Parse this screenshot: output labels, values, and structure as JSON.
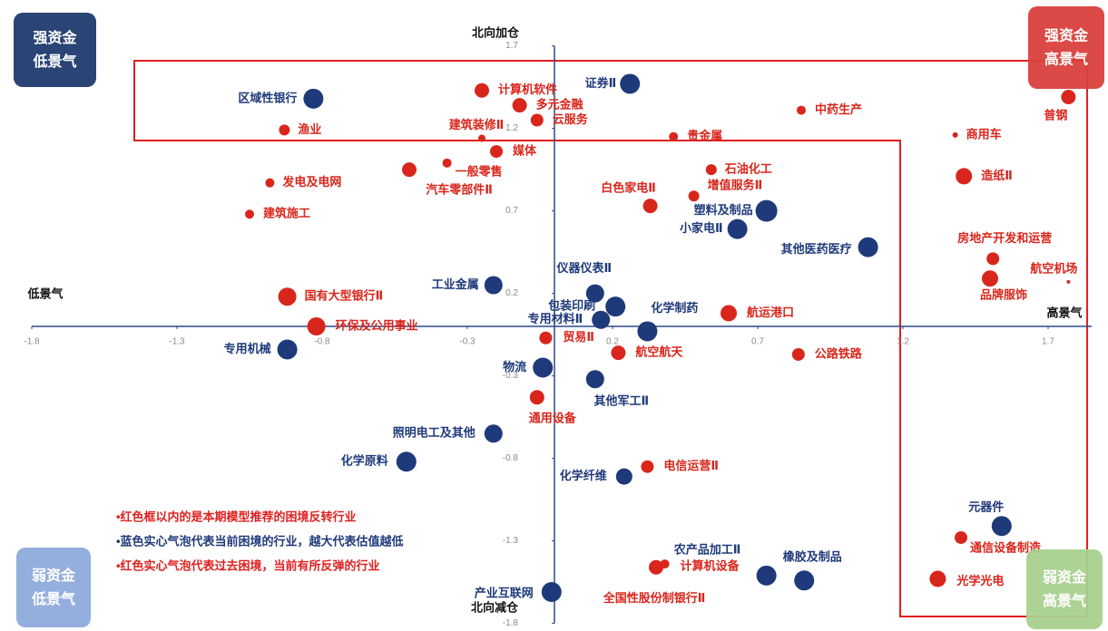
{
  "chart_data": {
    "type": "bubble",
    "xlim": [
      -1.8,
      1.85
    ],
    "ylim": [
      -1.8,
      1.7
    ],
    "xticks": [
      -1.8,
      -1.3,
      -0.8,
      -0.3,
      0.2,
      0.7,
      1.2,
      1.7
    ],
    "yticks": [
      1.7,
      1.2,
      0.7,
      0.2,
      -0.3,
      -0.8,
      -1.3,
      -1.8
    ],
    "x_label_left": "低景气",
    "x_label_right": "高景气",
    "y_label_top": "北向加仓",
    "y_label_bottom": "北向减仓",
    "quadrants": [
      {
        "line1": "强资金",
        "line2": "低景气",
        "color": "#1f3a6e"
      },
      {
        "line1": "强资金",
        "line2": "高景气",
        "color": "#d9403c"
      },
      {
        "line1": "弱资金",
        "line2": "低景气",
        "color": "#8eaadb"
      },
      {
        "line1": "弱资金",
        "line2": "高景气",
        "color": "#a9d18e"
      }
    ],
    "notes": [
      {
        "text": "•红色框以内的是本期模型推荐的困境反转行业",
        "color": "#e02020"
      },
      {
        "text": "•蓝色实心气泡代表当前困境的行业，越大代表估值越低",
        "color": "#1f3a7a"
      },
      {
        "text": "•红色实心气泡代表过去困境，当前有所反弹的行业",
        "color": "#e02020"
      }
    ],
    "points": [
      {
        "label": "区域性银行",
        "x": -0.83,
        "y": 1.38,
        "size": 11,
        "color": "#1f3a7a"
      },
      {
        "label": "证券Ⅱ",
        "x": 0.26,
        "y": 1.47,
        "size": 11,
        "color": "#1f3a7a"
      },
      {
        "label": "塑料及制品",
        "x": 0.73,
        "y": 0.7,
        "size": 12,
        "color": "#1f3a7a"
      },
      {
        "label": "小家电Ⅱ",
        "x": 0.63,
        "y": 0.59,
        "size": 11,
        "color": "#1f3a7a"
      },
      {
        "label": "其他医药医疗",
        "x": 1.08,
        "y": 0.48,
        "size": 11,
        "color": "#1f3a7a"
      },
      {
        "label": "工业金属",
        "x": -0.21,
        "y": 0.25,
        "size": 10,
        "color": "#1f3a7a"
      },
      {
        "label": "仪器仪表Ⅱ",
        "x": 0.14,
        "y": 0.2,
        "size": 10,
        "color": "#1f3a7a"
      },
      {
        "label": "包装印刷",
        "x": 0.21,
        "y": 0.12,
        "size": 11,
        "color": "#1f3a7a"
      },
      {
        "label": "专用材料Ⅱ",
        "x": 0.16,
        "y": 0.04,
        "size": 10,
        "color": "#1f3a7a"
      },
      {
        "label": "化学制药",
        "x": 0.32,
        "y": -0.03,
        "size": 11,
        "color": "#1f3a7a"
      },
      {
        "label": "专用机械",
        "x": -0.92,
        "y": -0.14,
        "size": 11,
        "color": "#1f3a7a"
      },
      {
        "label": "物流",
        "x": -0.04,
        "y": -0.25,
        "size": 11,
        "color": "#1f3a7a"
      },
      {
        "label": "其他军工Ⅱ",
        "x": 0.14,
        "y": -0.32,
        "size": 10,
        "color": "#1f3a7a"
      },
      {
        "label": "照明电工及其他",
        "x": -0.21,
        "y": -0.65,
        "size": 10,
        "color": "#1f3a7a"
      },
      {
        "label": "化学原料",
        "x": -0.51,
        "y": -0.82,
        "size": 11,
        "color": "#1f3a7a"
      },
      {
        "label": "化学纤维",
        "x": 0.24,
        "y": -0.91,
        "size": 9,
        "color": "#1f3a7a"
      },
      {
        "label": "元器件",
        "x": 1.54,
        "y": -1.21,
        "size": 11,
        "color": "#1f3a7a"
      },
      {
        "label": "橡胶及制品",
        "x": 0.86,
        "y": -1.54,
        "size": 11,
        "color": "#1f3a7a"
      },
      {
        "label": "农产品加工Ⅱ",
        "x": 0.73,
        "y": -1.51,
        "size": 11,
        "color": "#1f3a7a"
      },
      {
        "label": "产业互联网",
        "x": -0.01,
        "y": -1.61,
        "size": 11,
        "color": "#1f3a7a"
      },
      {
        "label": "计算机软件",
        "x": -0.25,
        "y": 1.43,
        "size": 8,
        "color": "#d9261c"
      },
      {
        "label": "多元金融",
        "x": -0.12,
        "y": 1.34,
        "size": 8,
        "color": "#d9261c"
      },
      {
        "label": "云服务",
        "x": -0.06,
        "y": 1.25,
        "size": 7,
        "color": "#d9261c"
      },
      {
        "label": "建筑装修Ⅱ",
        "x": -0.25,
        "y": 1.14,
        "size": 4,
        "color": "#d9261c"
      },
      {
        "label": "媒体",
        "x": -0.2,
        "y": 1.06,
        "size": 7,
        "color": "#d9261c"
      },
      {
        "label": "渔业",
        "x": -0.93,
        "y": 1.19,
        "size": 6,
        "color": "#d9261c"
      },
      {
        "label": "一般零售",
        "x": -0.37,
        "y": 0.99,
        "size": 5,
        "color": "#d9261c"
      },
      {
        "label": "发电及电网",
        "x": -0.98,
        "y": 0.87,
        "size": 5,
        "color": "#d9261c"
      },
      {
        "label": "汽车零部件Ⅱ",
        "x": -0.5,
        "y": 0.95,
        "size": 8,
        "color": "#d9261c"
      },
      {
        "label": "建筑施工",
        "x": -1.05,
        "y": 0.68,
        "size": 5,
        "color": "#d9261c"
      },
      {
        "label": "贵金属",
        "x": 0.41,
        "y": 1.15,
        "size": 5,
        "color": "#d9261c"
      },
      {
        "label": "中药生产",
        "x": 0.85,
        "y": 1.31,
        "size": 5,
        "color": "#d9261c"
      },
      {
        "label": "石油化工",
        "x": 0.54,
        "y": 0.95,
        "size": 6,
        "color": "#d9261c"
      },
      {
        "label": "增值服务Ⅱ",
        "x": 0.48,
        "y": 0.79,
        "size": 6,
        "color": "#d9261c"
      },
      {
        "label": "白色家电Ⅱ",
        "x": 0.33,
        "y": 0.73,
        "size": 8,
        "color": "#d9261c"
      },
      {
        "label": "普钢",
        "x": 1.77,
        "y": 1.39,
        "size": 8,
        "color": "#d9261c"
      },
      {
        "label": "商用车",
        "x": 1.38,
        "y": 1.16,
        "size": 3,
        "color": "#d9261c"
      },
      {
        "label": "造纸Ⅱ",
        "x": 1.41,
        "y": 0.91,
        "size": 9,
        "color": "#d9261c"
      },
      {
        "label": "房地产开发和运营",
        "x": 1.51,
        "y": 0.41,
        "size": 7,
        "color": "#d9261c"
      },
      {
        "label": "品牌服饰",
        "x": 1.5,
        "y": 0.29,
        "size": 9,
        "color": "#d9261c"
      },
      {
        "label": "航空机场",
        "x": 1.77,
        "y": 0.27,
        "size": 2,
        "color": "#d9261c"
      },
      {
        "label": "国有大型银行Ⅱ",
        "x": -0.92,
        "y": 0.18,
        "size": 10,
        "color": "#d9261c"
      },
      {
        "label": "环保及公用事业",
        "x": -0.82,
        "y": 0.0,
        "size": 10,
        "color": "#d9261c"
      },
      {
        "label": "航运港口",
        "x": 0.6,
        "y": 0.08,
        "size": 9,
        "color": "#d9261c"
      },
      {
        "label": "贸易Ⅱ",
        "x": -0.03,
        "y": -0.07,
        "size": 7,
        "color": "#d9261c"
      },
      {
        "label": "航空航天",
        "x": 0.22,
        "y": -0.16,
        "size": 8,
        "color": "#d9261c"
      },
      {
        "label": "公路铁路",
        "x": 0.84,
        "y": -0.17,
        "size": 7,
        "color": "#d9261c"
      },
      {
        "label": "通用设备",
        "x": -0.06,
        "y": -0.43,
        "size": 8,
        "color": "#d9261c"
      },
      {
        "label": "电信运营Ⅱ",
        "x": 0.32,
        "y": -0.85,
        "size": 7,
        "color": "#d9261c"
      },
      {
        "label": "通信设备制造",
        "x": 1.4,
        "y": -1.28,
        "size": 7,
        "color": "#d9261c"
      },
      {
        "label": "光学光电",
        "x": 1.32,
        "y": -1.53,
        "size": 9,
        "color": "#d9261c"
      },
      {
        "label": "计算机设备",
        "x": 0.38,
        "y": -1.44,
        "size": 5,
        "color": "#d9261c"
      },
      {
        "label": "全国性股份制银行Ⅱ",
        "x": 0.35,
        "y": -1.46,
        "size": 8,
        "color": "#d9261c"
      }
    ]
  }
}
